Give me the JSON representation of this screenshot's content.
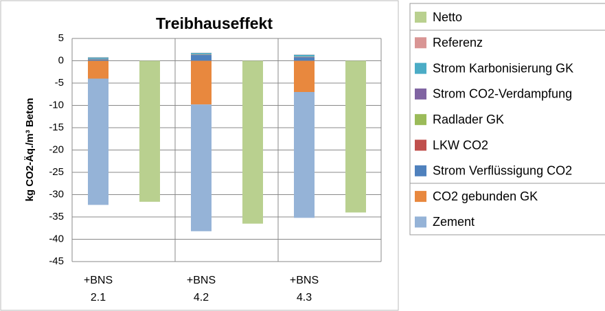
{
  "chart_data": {
    "type": "bar",
    "title": "Treibhauseffekt",
    "y_label": "kg CO2-Äq./m³ Beton",
    "categories": [
      "+BNS 2.1",
      "+BNS 4.2",
      "+BNS 4.3"
    ],
    "ylim": [
      -45,
      5
    ],
    "yticks": [
      5,
      0,
      -5,
      -10,
      -15,
      -20,
      -25,
      -30,
      -35,
      -40,
      -45
    ],
    "grid": true,
    "legend": "right",
    "series": [
      {
        "name": "Netto",
        "color": "#b9d08f",
        "values": [
          -31.6,
          -36.5,
          -34
        ]
      },
      {
        "name": "Referenz",
        "color": "#d99594",
        "values": [
          0.05,
          0.05,
          0.05
        ]
      },
      {
        "name": "Strom Karbonisierung GK",
        "color": "#4bacc6",
        "values": [
          0.3,
          0.3,
          0.4
        ]
      },
      {
        "name": "Strom CO2-Verdampfung",
        "color": "#8064a2",
        "values": [
          0.05,
          0.05,
          0.05
        ]
      },
      {
        "name": "Radlader GK",
        "color": "#9bbb59",
        "values": [
          0.05,
          0.05,
          0.05
        ]
      },
      {
        "name": "LKW  CO2",
        "color": "#c0504d",
        "values": [
          0.05,
          0.05,
          0.05
        ]
      },
      {
        "name": "Strom Verflüssigung CO2",
        "color": "#4f81bd",
        "values": [
          0.3,
          1.3,
          0.8
        ]
      },
      {
        "name": "CO2 gebunden GK",
        "color": "#e8883e",
        "values": [
          -4,
          -9.8,
          -7
        ]
      },
      {
        "name": "Zement",
        "color": "#95b3d7",
        "values": [
          -28.3,
          -28.4,
          -28.2
        ]
      }
    ]
  }
}
